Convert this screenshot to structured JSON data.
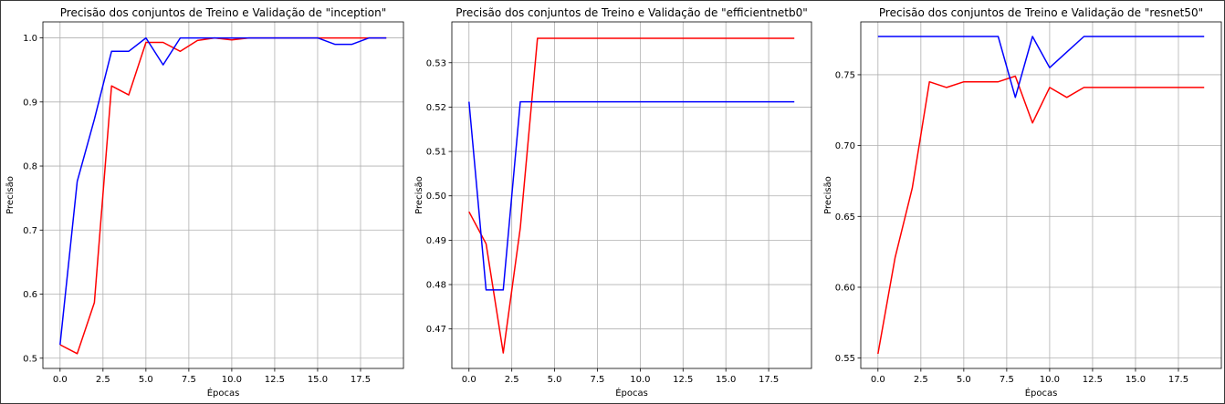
{
  "chart_data": [
    {
      "type": "line",
      "title": "Precisão dos conjuntos de Treino e Validação de \"inception\"",
      "xlabel": "Épocas",
      "ylabel": "Precisão",
      "x": [
        0,
        1,
        2,
        3,
        4,
        5,
        6,
        7,
        8,
        9,
        10,
        11,
        12,
        13,
        14,
        15,
        16,
        17,
        18,
        19
      ],
      "xticks": [
        "0.0",
        "2.5",
        "5.0",
        "7.5",
        "10.0",
        "12.5",
        "15.0",
        "17.5"
      ],
      "yticks": [
        "0.5",
        "0.6",
        "0.7",
        "0.8",
        "0.9",
        "1.0"
      ],
      "xlim": [
        -1,
        20
      ],
      "ylim": [
        0.484,
        1.025
      ],
      "grid": true,
      "series": [
        {
          "color": "#ff0000",
          "values": [
            0.521,
            0.507,
            0.587,
            0.925,
            0.911,
            0.993,
            0.993,
            0.979,
            0.996,
            1.0,
            0.997,
            1.0,
            1.0,
            1.0,
            1.0,
            1.0,
            1.0,
            1.0,
            1.0,
            1.0
          ]
        },
        {
          "color": "#0000ff",
          "values": [
            0.521,
            0.776,
            0.873,
            0.979,
            0.979,
            1.0,
            0.958,
            1.0,
            1.0,
            1.0,
            1.0,
            1.0,
            1.0,
            1.0,
            1.0,
            1.0,
            0.99,
            0.99,
            1.0,
            1.0
          ]
        }
      ]
    },
    {
      "type": "line",
      "title": "Precisão dos conjuntos de Treino e Validação de \"efficientnetb0\"",
      "xlabel": "Épocas",
      "ylabel": "Precisão",
      "x": [
        0,
        1,
        2,
        3,
        4,
        5,
        6,
        7,
        8,
        9,
        10,
        11,
        12,
        13,
        14,
        15,
        16,
        17,
        18,
        19
      ],
      "xticks": [
        "0.0",
        "2.5",
        "5.0",
        "7.5",
        "10.0",
        "12.5",
        "15.0",
        "17.5"
      ],
      "yticks": [
        "0.47",
        "0.48",
        "0.49",
        "0.50",
        "0.51",
        "0.52",
        "0.53"
      ],
      "xlim": [
        -1,
        20
      ],
      "ylim": [
        0.4611,
        0.5392
      ],
      "grid": true,
      "series": [
        {
          "color": "#ff0000",
          "values": [
            0.4964,
            0.4892,
            0.4646,
            0.4928,
            0.5355,
            0.5355,
            0.5355,
            0.5355,
            0.5355,
            0.5355,
            0.5355,
            0.5355,
            0.5355,
            0.5355,
            0.5355,
            0.5355,
            0.5355,
            0.5355,
            0.5355,
            0.5355
          ]
        },
        {
          "color": "#0000ff",
          "values": [
            0.5212,
            0.4788,
            0.4788,
            0.5212,
            0.5212,
            0.5212,
            0.5212,
            0.5212,
            0.5212,
            0.5212,
            0.5212,
            0.5212,
            0.5212,
            0.5212,
            0.5212,
            0.5212,
            0.5212,
            0.5212,
            0.5212,
            0.5212
          ]
        }
      ]
    },
    {
      "type": "line",
      "title": "Precisão dos conjuntos de Treino e Validação de \"resnet50\"",
      "xlabel": "Épocas",
      "ylabel": "Precisão",
      "x": [
        0,
        1,
        2,
        3,
        4,
        5,
        6,
        7,
        8,
        9,
        10,
        11,
        12,
        13,
        14,
        15,
        16,
        17,
        18,
        19
      ],
      "xticks": [
        "0.0",
        "2.5",
        "5.0",
        "7.5",
        "10.0",
        "12.5",
        "15.0",
        "17.5"
      ],
      "yticks": [
        "0.55",
        "0.60",
        "0.65",
        "0.70",
        "0.75"
      ],
      "xlim": [
        -1,
        20
      ],
      "ylim": [
        0.5427,
        0.7873
      ],
      "grid": true,
      "series": [
        {
          "color": "#ff0000",
          "values": [
            0.553,
            0.621,
            0.67,
            0.745,
            0.741,
            0.745,
            0.745,
            0.745,
            0.749,
            0.716,
            0.741,
            0.734,
            0.741,
            0.741,
            0.741,
            0.741,
            0.741,
            0.741,
            0.741,
            0.741
          ]
        },
        {
          "color": "#0000ff",
          "values": [
            0.777,
            0.777,
            0.777,
            0.777,
            0.777,
            0.777,
            0.777,
            0.777,
            0.734,
            0.777,
            0.755,
            0.766,
            0.777,
            0.777,
            0.777,
            0.777,
            0.777,
            0.777,
            0.777,
            0.777
          ]
        }
      ]
    }
  ]
}
